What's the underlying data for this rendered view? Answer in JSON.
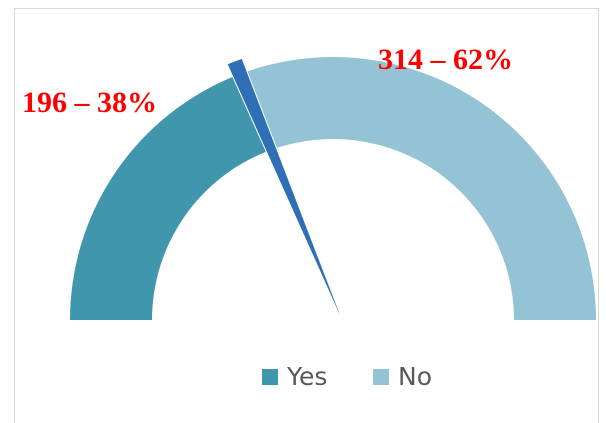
{
  "chart_data": {
    "type": "gauge",
    "categories": [
      "Yes",
      "No"
    ],
    "values": [
      196,
      314
    ],
    "value_labels": [
      "196 – 38%",
      "314 – 62%"
    ],
    "colors": [
      "#4096ac",
      "#93c3d4"
    ],
    "needle_color": "#2e6fb5",
    "legend": "bottom"
  }
}
